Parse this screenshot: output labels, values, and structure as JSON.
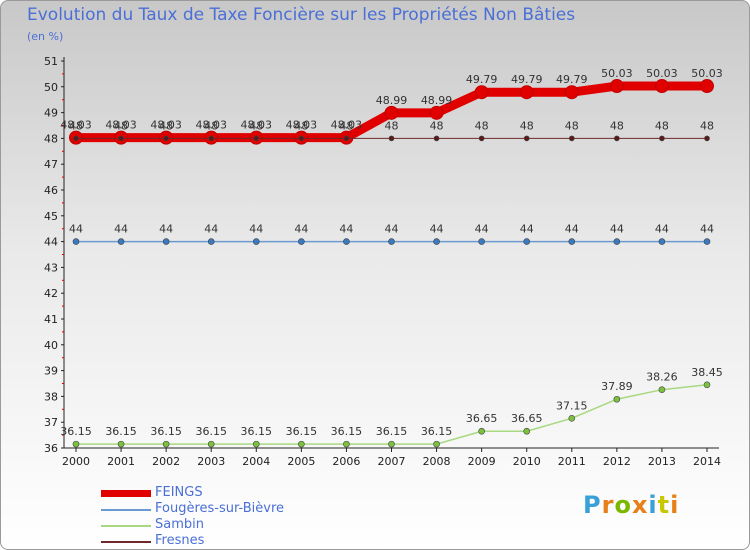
{
  "header": {
    "title": "Evolution du Taux de Taxe Foncière sur les Propriétés Non Bâties",
    "unit": "(en %)"
  },
  "logo": {
    "text": "Proxiti",
    "letter_colors": [
      "#3aa0d8",
      "#e8801a",
      "#7ab800",
      "#e8801a",
      "#3aa0d8",
      "#c8c800",
      "#e8801a"
    ]
  },
  "chart_data": {
    "type": "line",
    "title": "Evolution du Taux de Taxe Foncière sur les Propriétés Non Bâties",
    "ylabel": "(en %)",
    "xlabel": "",
    "ylim": [
      36,
      51
    ],
    "yticks": [
      36,
      37,
      38,
      39,
      40,
      41,
      42,
      43,
      44,
      45,
      46,
      47,
      48,
      49,
      50,
      51
    ],
    "categories": [
      "2000",
      "2001",
      "2002",
      "2003",
      "2004",
      "2005",
      "2006",
      "2007",
      "2008",
      "2009",
      "2010",
      "2011",
      "2012",
      "2013",
      "2014"
    ],
    "series": [
      {
        "name": "FEINGS",
        "color": "#e00000",
        "labels": [
          "48.03",
          "48.03",
          "48.03",
          "48.03",
          "48.03",
          "48.03",
          "48.03",
          "48.99",
          "48.99",
          "49.79",
          "49.79",
          "49.79",
          "50.03",
          "50.03",
          "50.03"
        ],
        "values": [
          48.03,
          48.03,
          48.03,
          48.03,
          48.03,
          48.03,
          48.03,
          48.99,
          48.99,
          49.79,
          49.79,
          49.79,
          50.03,
          50.03,
          50.03
        ]
      },
      {
        "name": "Fougères-sur-Bièvre",
        "color": "#6a9ad0",
        "labels": [
          "44",
          "44",
          "44",
          "44",
          "44",
          "44",
          "44",
          "44",
          "44",
          "44",
          "44",
          "44",
          "44",
          "44",
          "44"
        ],
        "values": [
          44,
          44,
          44,
          44,
          44,
          44,
          44,
          44,
          44,
          44,
          44,
          44,
          44,
          44,
          44
        ]
      },
      {
        "name": "Sambin",
        "color": "#a8d880",
        "labels": [
          "36.15",
          "36.15",
          "36.15",
          "36.15",
          "36.15",
          "36.15",
          "36.15",
          "36.15",
          "36.15",
          "36.65",
          "36.65",
          "37.15",
          "37.89",
          "38.26",
          "38.45"
        ],
        "values": [
          36.15,
          36.15,
          36.15,
          36.15,
          36.15,
          36.15,
          36.15,
          36.15,
          36.15,
          36.65,
          36.65,
          37.15,
          37.89,
          38.26,
          38.45
        ]
      },
      {
        "name": "Fresnes",
        "color": "#6e2a2a",
        "labels": [
          "48",
          "48",
          "48",
          "48",
          "48",
          "48",
          "48",
          "48",
          "48",
          "48",
          "48",
          "48",
          "48",
          "48",
          "48"
        ],
        "values": [
          48,
          48,
          48,
          48,
          48,
          48,
          48,
          48,
          48,
          48,
          48,
          48,
          48,
          48,
          48
        ]
      }
    ],
    "legend": [
      {
        "name": "FEINGS",
        "color": "#e00000"
      },
      {
        "name": "Fougères-sur-Bièvre",
        "color": "#6a9ad0"
      },
      {
        "name": "Sambin",
        "color": "#a8d880"
      },
      {
        "name": "Fresnes",
        "color": "#6e2a2a"
      }
    ],
    "legend_position": "bottom-left",
    "grid": false
  }
}
